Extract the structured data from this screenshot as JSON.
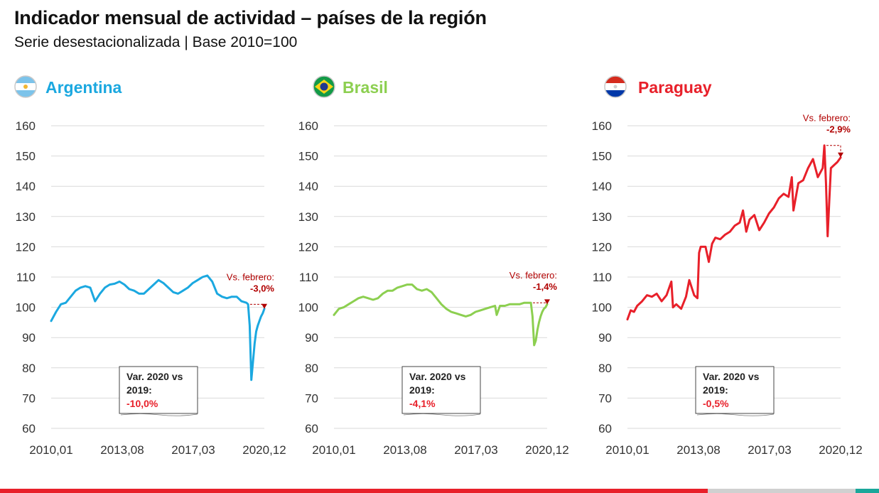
{
  "title": "Indicador mensual de actividad – países de la región",
  "subtitle": "Serie desestacionalizada | Base 2010=100",
  "chart_data": [
    {
      "type": "line",
      "name": "Argentina",
      "color": "#1ba8e0",
      "flag_icon": "argentina-flag-icon",
      "ylim": [
        60,
        160
      ],
      "yticks": [
        160,
        150,
        140,
        130,
        120,
        110,
        100,
        90,
        80,
        70,
        60
      ],
      "xticks": [
        "2010,01",
        "2013,08",
        "2017,03",
        "2020,12"
      ],
      "x_range": [
        "2010-01",
        "2020-12"
      ],
      "grid": true,
      "points": [
        [
          "2010-01",
          95.5
        ],
        [
          "2010-04",
          98.5
        ],
        [
          "2010-07",
          101
        ],
        [
          "2010-10",
          101.5
        ],
        [
          "2011-01",
          103.5
        ],
        [
          "2011-04",
          105.5
        ],
        [
          "2011-07",
          106.5
        ],
        [
          "2011-10",
          107
        ],
        [
          "2012-01",
          106.5
        ],
        [
          "2012-04",
          102
        ],
        [
          "2012-07",
          104.5
        ],
        [
          "2012-10",
          106.5
        ],
        [
          "2013-01",
          107.5
        ],
        [
          "2013-04",
          107.8
        ],
        [
          "2013-07",
          108.5
        ],
        [
          "2013-10",
          107.5
        ],
        [
          "2014-01",
          106
        ],
        [
          "2014-04",
          105.5
        ],
        [
          "2014-07",
          104.5
        ],
        [
          "2014-10",
          104.5
        ],
        [
          "2015-01",
          106
        ],
        [
          "2015-04",
          107.5
        ],
        [
          "2015-07",
          109
        ],
        [
          "2015-10",
          108
        ],
        [
          "2016-01",
          106.5
        ],
        [
          "2016-04",
          105
        ],
        [
          "2016-07",
          104.5
        ],
        [
          "2016-10",
          105.5
        ],
        [
          "2017-01",
          106.5
        ],
        [
          "2017-04",
          108
        ],
        [
          "2017-07",
          109
        ],
        [
          "2017-10",
          110
        ],
        [
          "2018-01",
          110.5
        ],
        [
          "2018-04",
          108.5
        ],
        [
          "2018-07",
          104.5
        ],
        [
          "2018-10",
          103.5
        ],
        [
          "2019-01",
          103
        ],
        [
          "2019-04",
          103.5
        ],
        [
          "2019-07",
          103.5
        ],
        [
          "2019-10",
          102
        ],
        [
          "2020-01",
          101.5
        ],
        [
          "2020-02",
          101
        ],
        [
          "2020-03",
          94
        ],
        [
          "2020-04",
          76
        ],
        [
          "2020-05",
          82
        ],
        [
          "2020-06",
          88
        ],
        [
          "2020-07",
          92
        ],
        [
          "2020-08",
          94
        ],
        [
          "2020-09",
          95.5
        ],
        [
          "2020-10",
          97
        ],
        [
          "2020-11",
          98
        ],
        [
          "2020-12",
          99.5
        ]
      ],
      "annotation": {
        "label": "Vs. febrero:",
        "value": "-3,0%"
      },
      "box": {
        "label": "Var. 2020 vs 2019:",
        "line1": "Var. 2020 vs",
        "line2": "2019:",
        "value": "-10,0%"
      }
    },
    {
      "type": "line",
      "name": "Brasil",
      "color": "#8ccf50",
      "flag_icon": "brazil-flag-icon",
      "ylim": [
        60,
        160
      ],
      "yticks": [
        160,
        150,
        140,
        130,
        120,
        110,
        100,
        90,
        80,
        70,
        60
      ],
      "xticks": [
        "2010,01",
        "2013,08",
        "2017,03",
        "2020,12"
      ],
      "x_range": [
        "2010-01",
        "2020-12"
      ],
      "grid": true,
      "points": [
        [
          "2010-01",
          97.5
        ],
        [
          "2010-04",
          99.5
        ],
        [
          "2010-07",
          100
        ],
        [
          "2010-10",
          101
        ],
        [
          "2011-01",
          102
        ],
        [
          "2011-04",
          103
        ],
        [
          "2011-07",
          103.5
        ],
        [
          "2011-10",
          103
        ],
        [
          "2012-01",
          102.5
        ],
        [
          "2012-04",
          103
        ],
        [
          "2012-07",
          104.5
        ],
        [
          "2012-10",
          105.5
        ],
        [
          "2013-01",
          105.5
        ],
        [
          "2013-04",
          106.5
        ],
        [
          "2013-07",
          107
        ],
        [
          "2013-10",
          107.5
        ],
        [
          "2014-01",
          107.5
        ],
        [
          "2014-04",
          106
        ],
        [
          "2014-07",
          105.5
        ],
        [
          "2014-10",
          106
        ],
        [
          "2015-01",
          105
        ],
        [
          "2015-04",
          103
        ],
        [
          "2015-07",
          101
        ],
        [
          "2015-10",
          99.5
        ],
        [
          "2016-01",
          98.5
        ],
        [
          "2016-04",
          98
        ],
        [
          "2016-07",
          97.5
        ],
        [
          "2016-10",
          97
        ],
        [
          "2017-01",
          97.5
        ],
        [
          "2017-04",
          98.5
        ],
        [
          "2017-07",
          99
        ],
        [
          "2017-10",
          99.5
        ],
        [
          "2018-01",
          100
        ],
        [
          "2018-04",
          100.5
        ],
        [
          "2018-05",
          97.5
        ],
        [
          "2018-07",
          100.5
        ],
        [
          "2018-10",
          100.5
        ],
        [
          "2019-01",
          101
        ],
        [
          "2019-04",
          101
        ],
        [
          "2019-07",
          101
        ],
        [
          "2019-10",
          101.5
        ],
        [
          "2020-01",
          101.5
        ],
        [
          "2020-02",
          101.5
        ],
        [
          "2020-03",
          97
        ],
        [
          "2020-04",
          87.5
        ],
        [
          "2020-05",
          89
        ],
        [
          "2020-06",
          92.5
        ],
        [
          "2020-07",
          95
        ],
        [
          "2020-08",
          97
        ],
        [
          "2020-09",
          98.5
        ],
        [
          "2020-10",
          99.5
        ],
        [
          "2020-11",
          100
        ],
        [
          "2020-12",
          101
        ]
      ],
      "annotation": {
        "label": "Vs. febrero:",
        "value": "-1,4%"
      },
      "box": {
        "label": "Var. 2020 vs 2019:",
        "line1": "Var. 2020 vs",
        "line2": "2019:",
        "value": "-4,1%"
      }
    },
    {
      "type": "line",
      "name": "Paraguay",
      "color": "#e8202a",
      "flag_icon": "paraguay-flag-icon",
      "ylim": [
        60,
        160
      ],
      "yticks": [
        160,
        150,
        140,
        130,
        120,
        110,
        100,
        90,
        80,
        70,
        60
      ],
      "xticks": [
        "2010,01",
        "2013,08",
        "2017,03",
        "2020,12"
      ],
      "x_range": [
        "2010-01",
        "2020-12"
      ],
      "grid": true,
      "points": [
        [
          "2010-01",
          96
        ],
        [
          "2010-03",
          99
        ],
        [
          "2010-05",
          98.5
        ],
        [
          "2010-07",
          100.5
        ],
        [
          "2010-10",
          102
        ],
        [
          "2011-01",
          104
        ],
        [
          "2011-04",
          103.5
        ],
        [
          "2011-07",
          104.5
        ],
        [
          "2011-10",
          102
        ],
        [
          "2012-01",
          104
        ],
        [
          "2012-04",
          108.5
        ],
        [
          "2012-05",
          100
        ],
        [
          "2012-07",
          101
        ],
        [
          "2012-10",
          99.5
        ],
        [
          "2013-01",
          103.5
        ],
        [
          "2013-03",
          109
        ],
        [
          "2013-06",
          104
        ],
        [
          "2013-08",
          103
        ],
        [
          "2013-09",
          118
        ],
        [
          "2013-10",
          120
        ],
        [
          "2014-01",
          120
        ],
        [
          "2014-03",
          115
        ],
        [
          "2014-05",
          121
        ],
        [
          "2014-07",
          123
        ],
        [
          "2014-10",
          122.5
        ],
        [
          "2015-01",
          124
        ],
        [
          "2015-04",
          125
        ],
        [
          "2015-07",
          127
        ],
        [
          "2015-10",
          128
        ],
        [
          "2015-12",
          132
        ],
        [
          "2016-02",
          125
        ],
        [
          "2016-04",
          129
        ],
        [
          "2016-07",
          130.5
        ],
        [
          "2016-10",
          125.5
        ],
        [
          "2017-01",
          128
        ],
        [
          "2017-04",
          131
        ],
        [
          "2017-07",
          133
        ],
        [
          "2017-10",
          136
        ],
        [
          "2018-01",
          137.5
        ],
        [
          "2018-04",
          136.5
        ],
        [
          "2018-06",
          143
        ],
        [
          "2018-07",
          132
        ],
        [
          "2018-10",
          141
        ],
        [
          "2019-01",
          142
        ],
        [
          "2019-04",
          146
        ],
        [
          "2019-07",
          149
        ],
        [
          "2019-10",
          143
        ],
        [
          "2020-01",
          146
        ],
        [
          "2020-02",
          153.5
        ],
        [
          "2020-03",
          141
        ],
        [
          "2020-04",
          123.5
        ],
        [
          "2020-05",
          135
        ],
        [
          "2020-06",
          146
        ],
        [
          "2020-08",
          147
        ],
        [
          "2020-10",
          148
        ],
        [
          "2020-12",
          149.5
        ]
      ],
      "annotation": {
        "label": "Vs. febrero:",
        "value": "-2,9%"
      },
      "box": {
        "label": "Var. 2020 vs 2019:",
        "line1": "Var. 2020 vs",
        "line2": "2019:",
        "value": "-0,5%"
      }
    }
  ],
  "footer_colors": [
    "#e8202a",
    "#d0d0d0",
    "#1aa79a"
  ]
}
